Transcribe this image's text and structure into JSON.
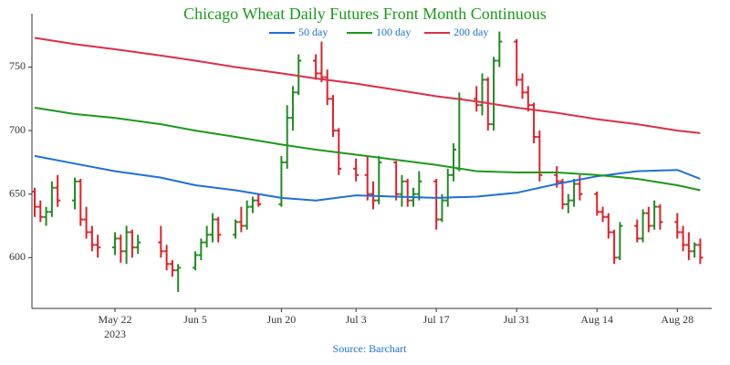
{
  "chart_data": {
    "type": "ohlc",
    "title": "Chicago Wheat Daily Futures Front Month Continuous",
    "source": "Source: Barchart",
    "x": [
      "2023-05-08",
      "2023-05-09",
      "2023-05-10",
      "2023-05-11",
      "2023-05-12",
      "2023-05-15",
      "2023-05-16",
      "2023-05-17",
      "2023-05-18",
      "2023-05-19",
      "2023-05-22",
      "2023-05-23",
      "2023-05-24",
      "2023-05-25",
      "2023-05-26",
      "2023-05-30",
      "2023-05-31",
      "2023-06-01",
      "2023-06-02",
      "2023-06-05",
      "2023-06-06",
      "2023-06-07",
      "2023-06-08",
      "2023-06-09",
      "2023-06-12",
      "2023-06-13",
      "2023-06-14",
      "2023-06-15",
      "2023-06-16",
      "2023-06-20",
      "2023-06-21",
      "2023-06-22",
      "2023-06-23",
      "2023-06-26",
      "2023-06-27",
      "2023-06-28",
      "2023-06-29",
      "2023-06-30",
      "2023-07-03",
      "2023-07-05",
      "2023-07-06",
      "2023-07-07",
      "2023-07-10",
      "2023-07-11",
      "2023-07-12",
      "2023-07-13",
      "2023-07-14",
      "2023-07-17",
      "2023-07-18",
      "2023-07-19",
      "2023-07-20",
      "2023-07-21",
      "2023-07-24",
      "2023-07-25",
      "2023-07-26",
      "2023-07-27",
      "2023-07-28",
      "2023-07-31",
      "2023-08-01",
      "2023-08-02",
      "2023-08-03",
      "2023-08-04",
      "2023-08-07",
      "2023-08-08",
      "2023-08-09",
      "2023-08-10",
      "2023-08-11",
      "2023-08-14",
      "2023-08-15",
      "2023-08-16",
      "2023-08-17",
      "2023-08-18",
      "2023-08-21",
      "2023-08-22",
      "2023-08-23",
      "2023-08-24",
      "2023-08-25",
      "2023-08-28",
      "2023-08-29",
      "2023-08-30",
      "2023-08-31",
      "2023-09-01"
    ],
    "open": [
      652,
      640,
      632,
      636,
      655,
      645,
      660,
      630,
      620,
      610,
      608,
      615,
      605,
      620,
      608,
      612,
      605,
      595,
      590,
      592,
      602,
      612,
      618,
      630,
      618,
      628,
      625,
      640,
      645,
      642,
      675,
      710,
      730,
      755,
      745,
      742,
      725,
      700,
      670,
      665,
      650,
      645,
      675,
      650,
      660,
      645,
      650,
      660,
      630,
      645,
      665,
      670,
      725,
      720,
      740,
      705,
      755,
      770,
      740,
      730,
      720,
      695,
      665,
      660,
      642,
      645,
      658,
      650,
      636,
      632,
      620,
      600,
      625,
      615,
      635,
      625,
      640,
      628,
      620,
      610,
      605,
      610
    ],
    "high": [
      655,
      645,
      640,
      660,
      665,
      663,
      662,
      640,
      625,
      618,
      620,
      618,
      625,
      622,
      618,
      625,
      610,
      598,
      595,
      605,
      615,
      625,
      635,
      632,
      630,
      640,
      645,
      648,
      650,
      680,
      720,
      735,
      760,
      760,
      770,
      748,
      728,
      702,
      678,
      680,
      660,
      680,
      676,
      665,
      662,
      655,
      668,
      662,
      650,
      670,
      690,
      730,
      735,
      745,
      742,
      758,
      778,
      772,
      745,
      735,
      722,
      700,
      672,
      662,
      650,
      662,
      665,
      652,
      640,
      635,
      622,
      628,
      630,
      638,
      640,
      645,
      642,
      635,
      625,
      620,
      612,
      615
    ],
    "low": [
      632,
      628,
      625,
      632,
      640,
      638,
      625,
      615,
      605,
      600,
      602,
      596,
      595,
      600,
      603,
      600,
      590,
      585,
      573,
      590,
      598,
      608,
      612,
      612,
      615,
      620,
      622,
      635,
      640,
      640,
      670,
      700,
      728,
      740,
      738,
      720,
      695,
      665,
      660,
      645,
      638,
      642,
      645,
      640,
      640,
      640,
      645,
      622,
      628,
      640,
      660,
      668,
      715,
      712,
      700,
      700,
      750,
      735,
      725,
      715,
      690,
      660,
      655,
      638,
      635,
      640,
      645,
      633,
      628,
      615,
      595,
      598,
      612,
      612,
      620,
      622,
      622,
      615,
      605,
      598,
      600,
      595
    ],
    "close": [
      640,
      632,
      636,
      655,
      645,
      660,
      630,
      620,
      610,
      608,
      615,
      605,
      620,
      608,
      612,
      605,
      595,
      590,
      592,
      602,
      612,
      618,
      630,
      618,
      628,
      625,
      640,
      645,
      642,
      675,
      710,
      730,
      755,
      745,
      742,
      725,
      700,
      670,
      665,
      650,
      645,
      675,
      650,
      660,
      645,
      650,
      660,
      630,
      645,
      665,
      685,
      725,
      720,
      740,
      705,
      755,
      770,
      740,
      730,
      720,
      695,
      665,
      660,
      642,
      645,
      658,
      650,
      636,
      632,
      620,
      600,
      625,
      615,
      635,
      625,
      640,
      628,
      620,
      610,
      605,
      610,
      600
    ],
    "increasing_color": "#228b22",
    "decreasing_color": "#e0202a",
    "series": [
      {
        "name": "50 day",
        "color": "#1f6fd8",
        "x": [
          "2023-05-08",
          "2023-05-15",
          "2023-05-22",
          "2023-05-30",
          "2023-06-05",
          "2023-06-12",
          "2023-06-20",
          "2023-06-26",
          "2023-07-03",
          "2023-07-10",
          "2023-07-17",
          "2023-07-24",
          "2023-07-31",
          "2023-08-07",
          "2023-08-14",
          "2023-08-21",
          "2023-08-28",
          "2023-09-01"
        ],
        "values": [
          680,
          674,
          668,
          663,
          657,
          653,
          647,
          645,
          649,
          648,
          647,
          648,
          651,
          658,
          664,
          668,
          669,
          662
        ]
      },
      {
        "name": "100 day",
        "color": "#1a9a1a",
        "x": [
          "2023-05-08",
          "2023-05-15",
          "2023-05-22",
          "2023-05-30",
          "2023-06-05",
          "2023-06-12",
          "2023-06-20",
          "2023-06-26",
          "2023-07-03",
          "2023-07-10",
          "2023-07-17",
          "2023-07-24",
          "2023-07-31",
          "2023-08-07",
          "2023-08-14",
          "2023-08-21",
          "2023-08-28",
          "2023-09-01"
        ],
        "values": [
          718,
          713,
          710,
          705,
          700,
          695,
          689,
          685,
          681,
          677,
          673,
          668,
          667,
          667,
          665,
          662,
          657,
          653
        ]
      },
      {
        "name": "200 day",
        "color": "#dc2f45",
        "x": [
          "2023-05-08",
          "2023-05-15",
          "2023-05-22",
          "2023-05-30",
          "2023-06-05",
          "2023-06-12",
          "2023-06-20",
          "2023-06-26",
          "2023-07-03",
          "2023-07-10",
          "2023-07-17",
          "2023-07-24",
          "2023-07-31",
          "2023-08-07",
          "2023-08-14",
          "2023-08-21",
          "2023-08-28",
          "2023-09-01"
        ],
        "values": [
          773,
          768,
          764,
          759,
          755,
          750,
          745,
          741,
          737,
          732,
          727,
          723,
          718,
          714,
          709,
          705,
          700,
          698
        ]
      }
    ],
    "xlim": [
      "2023-05-08",
      "2023-09-03"
    ],
    "xticks": [
      {
        "value": "2023-05-22",
        "label": "May 22"
      },
      {
        "value": "2023-06-05",
        "label": "Jun 5"
      },
      {
        "value": "2023-06-20",
        "label": "Jun 20"
      },
      {
        "value": "2023-07-03",
        "label": "Jul 3"
      },
      {
        "value": "2023-07-17",
        "label": "Jul 17"
      },
      {
        "value": "2023-07-31",
        "label": "Jul 31"
      },
      {
        "value": "2023-08-14",
        "label": "Aug 14"
      },
      {
        "value": "2023-08-28",
        "label": "Aug 28"
      }
    ],
    "x_year_label": "2023",
    "ylim": [
      560,
      792
    ],
    "yticks": [
      600,
      650,
      700,
      750
    ],
    "grid": false,
    "legend": "top"
  }
}
